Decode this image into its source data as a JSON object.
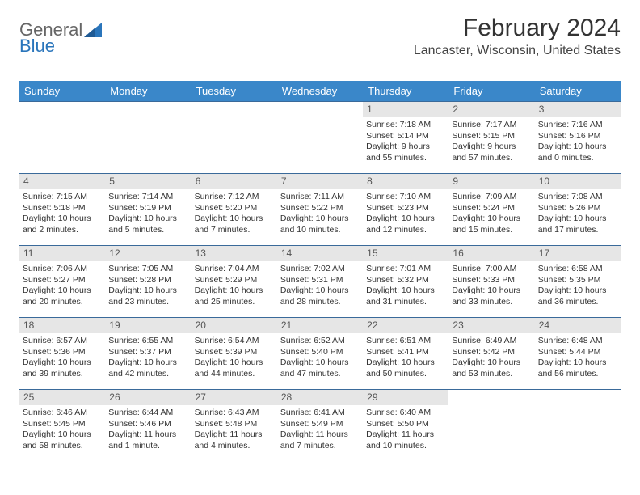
{
  "logo": {
    "part1": "General",
    "part2": "Blue"
  },
  "header": {
    "month_title": "February 2024",
    "location": "Lancaster, Wisconsin, United States"
  },
  "weekdays": [
    "Sunday",
    "Monday",
    "Tuesday",
    "Wednesday",
    "Thursday",
    "Friday",
    "Saturday"
  ],
  "colors": {
    "header_bg": "#3a87c9",
    "header_text": "#ffffff",
    "daynum_bg": "#e6e6e6",
    "week_border": "#3a6a9a",
    "logo_blue": "#2a75bb"
  },
  "weeks": [
    [
      null,
      null,
      null,
      null,
      {
        "n": "1",
        "sunrise": "Sunrise: 7:18 AM",
        "sunset": "Sunset: 5:14 PM",
        "daylight1": "Daylight: 9 hours",
        "daylight2": "and 55 minutes."
      },
      {
        "n": "2",
        "sunrise": "Sunrise: 7:17 AM",
        "sunset": "Sunset: 5:15 PM",
        "daylight1": "Daylight: 9 hours",
        "daylight2": "and 57 minutes."
      },
      {
        "n": "3",
        "sunrise": "Sunrise: 7:16 AM",
        "sunset": "Sunset: 5:16 PM",
        "daylight1": "Daylight: 10 hours",
        "daylight2": "and 0 minutes."
      }
    ],
    [
      {
        "n": "4",
        "sunrise": "Sunrise: 7:15 AM",
        "sunset": "Sunset: 5:18 PM",
        "daylight1": "Daylight: 10 hours",
        "daylight2": "and 2 minutes."
      },
      {
        "n": "5",
        "sunrise": "Sunrise: 7:14 AM",
        "sunset": "Sunset: 5:19 PM",
        "daylight1": "Daylight: 10 hours",
        "daylight2": "and 5 minutes."
      },
      {
        "n": "6",
        "sunrise": "Sunrise: 7:12 AM",
        "sunset": "Sunset: 5:20 PM",
        "daylight1": "Daylight: 10 hours",
        "daylight2": "and 7 minutes."
      },
      {
        "n": "7",
        "sunrise": "Sunrise: 7:11 AM",
        "sunset": "Sunset: 5:22 PM",
        "daylight1": "Daylight: 10 hours",
        "daylight2": "and 10 minutes."
      },
      {
        "n": "8",
        "sunrise": "Sunrise: 7:10 AM",
        "sunset": "Sunset: 5:23 PM",
        "daylight1": "Daylight: 10 hours",
        "daylight2": "and 12 minutes."
      },
      {
        "n": "9",
        "sunrise": "Sunrise: 7:09 AM",
        "sunset": "Sunset: 5:24 PM",
        "daylight1": "Daylight: 10 hours",
        "daylight2": "and 15 minutes."
      },
      {
        "n": "10",
        "sunrise": "Sunrise: 7:08 AM",
        "sunset": "Sunset: 5:26 PM",
        "daylight1": "Daylight: 10 hours",
        "daylight2": "and 17 minutes."
      }
    ],
    [
      {
        "n": "11",
        "sunrise": "Sunrise: 7:06 AM",
        "sunset": "Sunset: 5:27 PM",
        "daylight1": "Daylight: 10 hours",
        "daylight2": "and 20 minutes."
      },
      {
        "n": "12",
        "sunrise": "Sunrise: 7:05 AM",
        "sunset": "Sunset: 5:28 PM",
        "daylight1": "Daylight: 10 hours",
        "daylight2": "and 23 minutes."
      },
      {
        "n": "13",
        "sunrise": "Sunrise: 7:04 AM",
        "sunset": "Sunset: 5:29 PM",
        "daylight1": "Daylight: 10 hours",
        "daylight2": "and 25 minutes."
      },
      {
        "n": "14",
        "sunrise": "Sunrise: 7:02 AM",
        "sunset": "Sunset: 5:31 PM",
        "daylight1": "Daylight: 10 hours",
        "daylight2": "and 28 minutes."
      },
      {
        "n": "15",
        "sunrise": "Sunrise: 7:01 AM",
        "sunset": "Sunset: 5:32 PM",
        "daylight1": "Daylight: 10 hours",
        "daylight2": "and 31 minutes."
      },
      {
        "n": "16",
        "sunrise": "Sunrise: 7:00 AM",
        "sunset": "Sunset: 5:33 PM",
        "daylight1": "Daylight: 10 hours",
        "daylight2": "and 33 minutes."
      },
      {
        "n": "17",
        "sunrise": "Sunrise: 6:58 AM",
        "sunset": "Sunset: 5:35 PM",
        "daylight1": "Daylight: 10 hours",
        "daylight2": "and 36 minutes."
      }
    ],
    [
      {
        "n": "18",
        "sunrise": "Sunrise: 6:57 AM",
        "sunset": "Sunset: 5:36 PM",
        "daylight1": "Daylight: 10 hours",
        "daylight2": "and 39 minutes."
      },
      {
        "n": "19",
        "sunrise": "Sunrise: 6:55 AM",
        "sunset": "Sunset: 5:37 PM",
        "daylight1": "Daylight: 10 hours",
        "daylight2": "and 42 minutes."
      },
      {
        "n": "20",
        "sunrise": "Sunrise: 6:54 AM",
        "sunset": "Sunset: 5:39 PM",
        "daylight1": "Daylight: 10 hours",
        "daylight2": "and 44 minutes."
      },
      {
        "n": "21",
        "sunrise": "Sunrise: 6:52 AM",
        "sunset": "Sunset: 5:40 PM",
        "daylight1": "Daylight: 10 hours",
        "daylight2": "and 47 minutes."
      },
      {
        "n": "22",
        "sunrise": "Sunrise: 6:51 AM",
        "sunset": "Sunset: 5:41 PM",
        "daylight1": "Daylight: 10 hours",
        "daylight2": "and 50 minutes."
      },
      {
        "n": "23",
        "sunrise": "Sunrise: 6:49 AM",
        "sunset": "Sunset: 5:42 PM",
        "daylight1": "Daylight: 10 hours",
        "daylight2": "and 53 minutes."
      },
      {
        "n": "24",
        "sunrise": "Sunrise: 6:48 AM",
        "sunset": "Sunset: 5:44 PM",
        "daylight1": "Daylight: 10 hours",
        "daylight2": "and 56 minutes."
      }
    ],
    [
      {
        "n": "25",
        "sunrise": "Sunrise: 6:46 AM",
        "sunset": "Sunset: 5:45 PM",
        "daylight1": "Daylight: 10 hours",
        "daylight2": "and 58 minutes."
      },
      {
        "n": "26",
        "sunrise": "Sunrise: 6:44 AM",
        "sunset": "Sunset: 5:46 PM",
        "daylight1": "Daylight: 11 hours",
        "daylight2": "and 1 minute."
      },
      {
        "n": "27",
        "sunrise": "Sunrise: 6:43 AM",
        "sunset": "Sunset: 5:48 PM",
        "daylight1": "Daylight: 11 hours",
        "daylight2": "and 4 minutes."
      },
      {
        "n": "28",
        "sunrise": "Sunrise: 6:41 AM",
        "sunset": "Sunset: 5:49 PM",
        "daylight1": "Daylight: 11 hours",
        "daylight2": "and 7 minutes."
      },
      {
        "n": "29",
        "sunrise": "Sunrise: 6:40 AM",
        "sunset": "Sunset: 5:50 PM",
        "daylight1": "Daylight: 11 hours",
        "daylight2": "and 10 minutes."
      },
      null,
      null
    ]
  ]
}
